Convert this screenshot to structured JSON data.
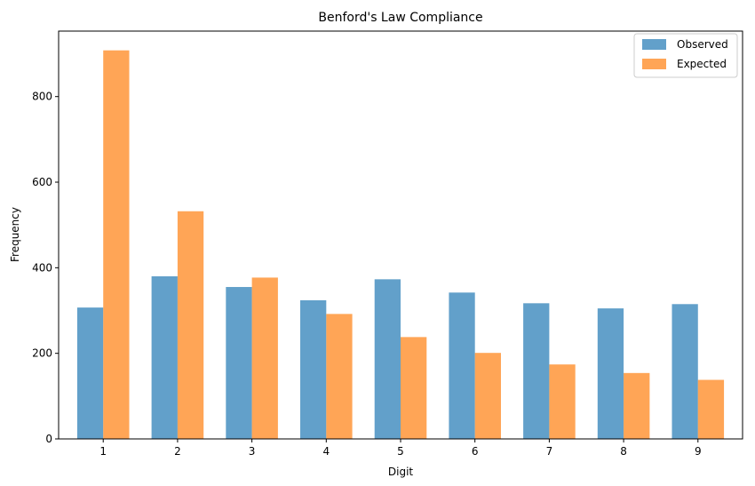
{
  "chart_data": {
    "type": "bar",
    "title": "Benford's Law Compliance",
    "xlabel": "Digit",
    "ylabel": "Frequency",
    "categories": [
      "1",
      "2",
      "3",
      "4",
      "5",
      "6",
      "7",
      "8",
      "9"
    ],
    "series": [
      {
        "name": "Observed",
        "color": "#1f77b4",
        "values": [
          307,
          380,
          355,
          324,
          373,
          342,
          317,
          305,
          315
        ]
      },
      {
        "name": "Expected",
        "color": "#ff7f0e",
        "values": [
          908,
          532,
          377,
          292,
          238,
          201,
          174,
          154,
          138
        ]
      }
    ],
    "ylim": [
      0,
      953
    ],
    "yticks": [
      0,
      200,
      400,
      600,
      800
    ],
    "legend_position": "top-right",
    "grid": false
  }
}
